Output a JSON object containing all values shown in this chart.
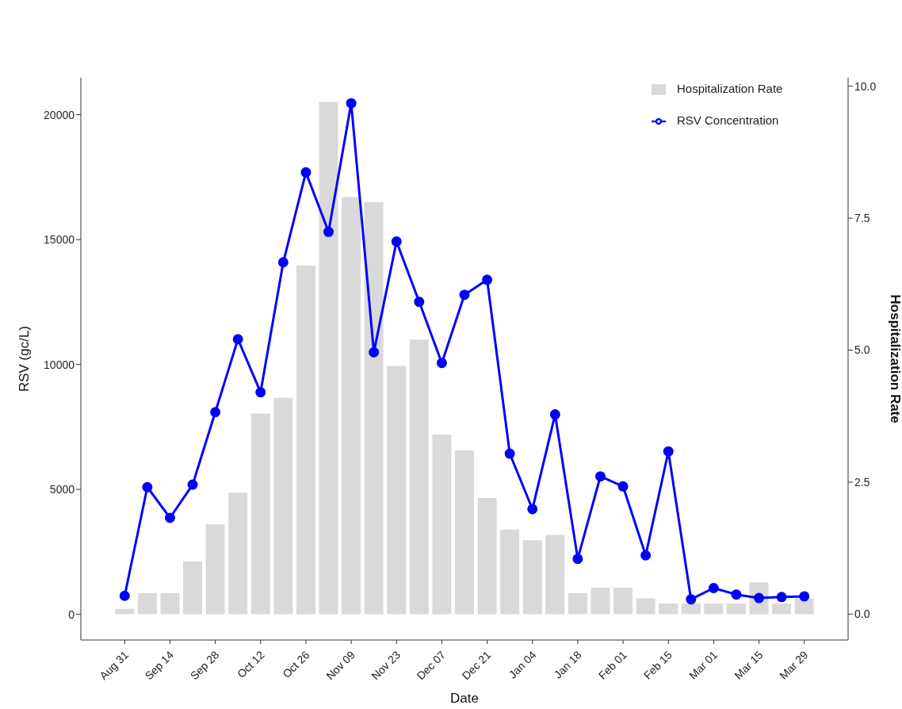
{
  "chart_data": {
    "type": "bar",
    "xlabel": "Date",
    "ylabel": "RSV (gc/L)",
    "y2label": "Hospitalization Rate",
    "categories": [
      "Aug 31",
      null,
      "Sep 14",
      null,
      "Sep 28",
      null,
      "Oct 12",
      null,
      "Oct 26",
      null,
      "Nov 09",
      null,
      "Nov 23",
      null,
      "Dec 07",
      null,
      "Dec 21",
      null,
      "Jan 04",
      null,
      "Jan 18",
      null,
      "Feb 01",
      null,
      "Feb 15",
      null,
      "Mar 01",
      null,
      "Mar 15",
      null,
      "Mar 29"
    ],
    "series": [
      {
        "name": "Hospitalization Rate",
        "axis": "y2",
        "color": "#d9d9d9",
        "values": [
          0.1,
          0.4,
          0.4,
          1.0,
          1.7,
          2.3,
          3.8,
          4.1,
          6.6,
          9.7,
          7.9,
          7.8,
          4.7,
          5.2,
          3.4,
          3.1,
          2.2,
          1.6,
          1.4,
          1.5,
          0.4,
          0.5,
          0.5,
          0.3,
          0.2,
          0.2,
          0.2,
          0.2,
          0.6,
          0.2,
          0.3
        ]
      },
      {
        "name": "RSV Concentration",
        "type": "line",
        "color": "#0000ff",
        "values": [
          740,
          5090,
          3860,
          5190,
          8090,
          11010,
          8890,
          14090,
          17690,
          15310,
          20460,
          10490,
          14920,
          12510,
          10060,
          12790,
          13390,
          6430,
          4210,
          8000,
          2220,
          5520,
          5120,
          2360,
          6520,
          600,
          1050,
          790,
          650,
          690,
          720
        ]
      }
    ],
    "ylim": [
      -1030,
      21480
    ],
    "yticks": [
      0,
      5000,
      10000,
      15000,
      20000
    ],
    "y2lim": [
      -0.49,
      10.16
    ],
    "y2ticks": [
      {
        "value": 0,
        "label": "0.0"
      },
      {
        "value": 2.5,
        "label": "2.5"
      },
      {
        "value": 5,
        "label": "5.0"
      },
      {
        "value": 7.5,
        "label": "7.5"
      },
      {
        "value": 10,
        "label": "10.0"
      }
    ],
    "marker": "circle",
    "legend": "top right"
  }
}
